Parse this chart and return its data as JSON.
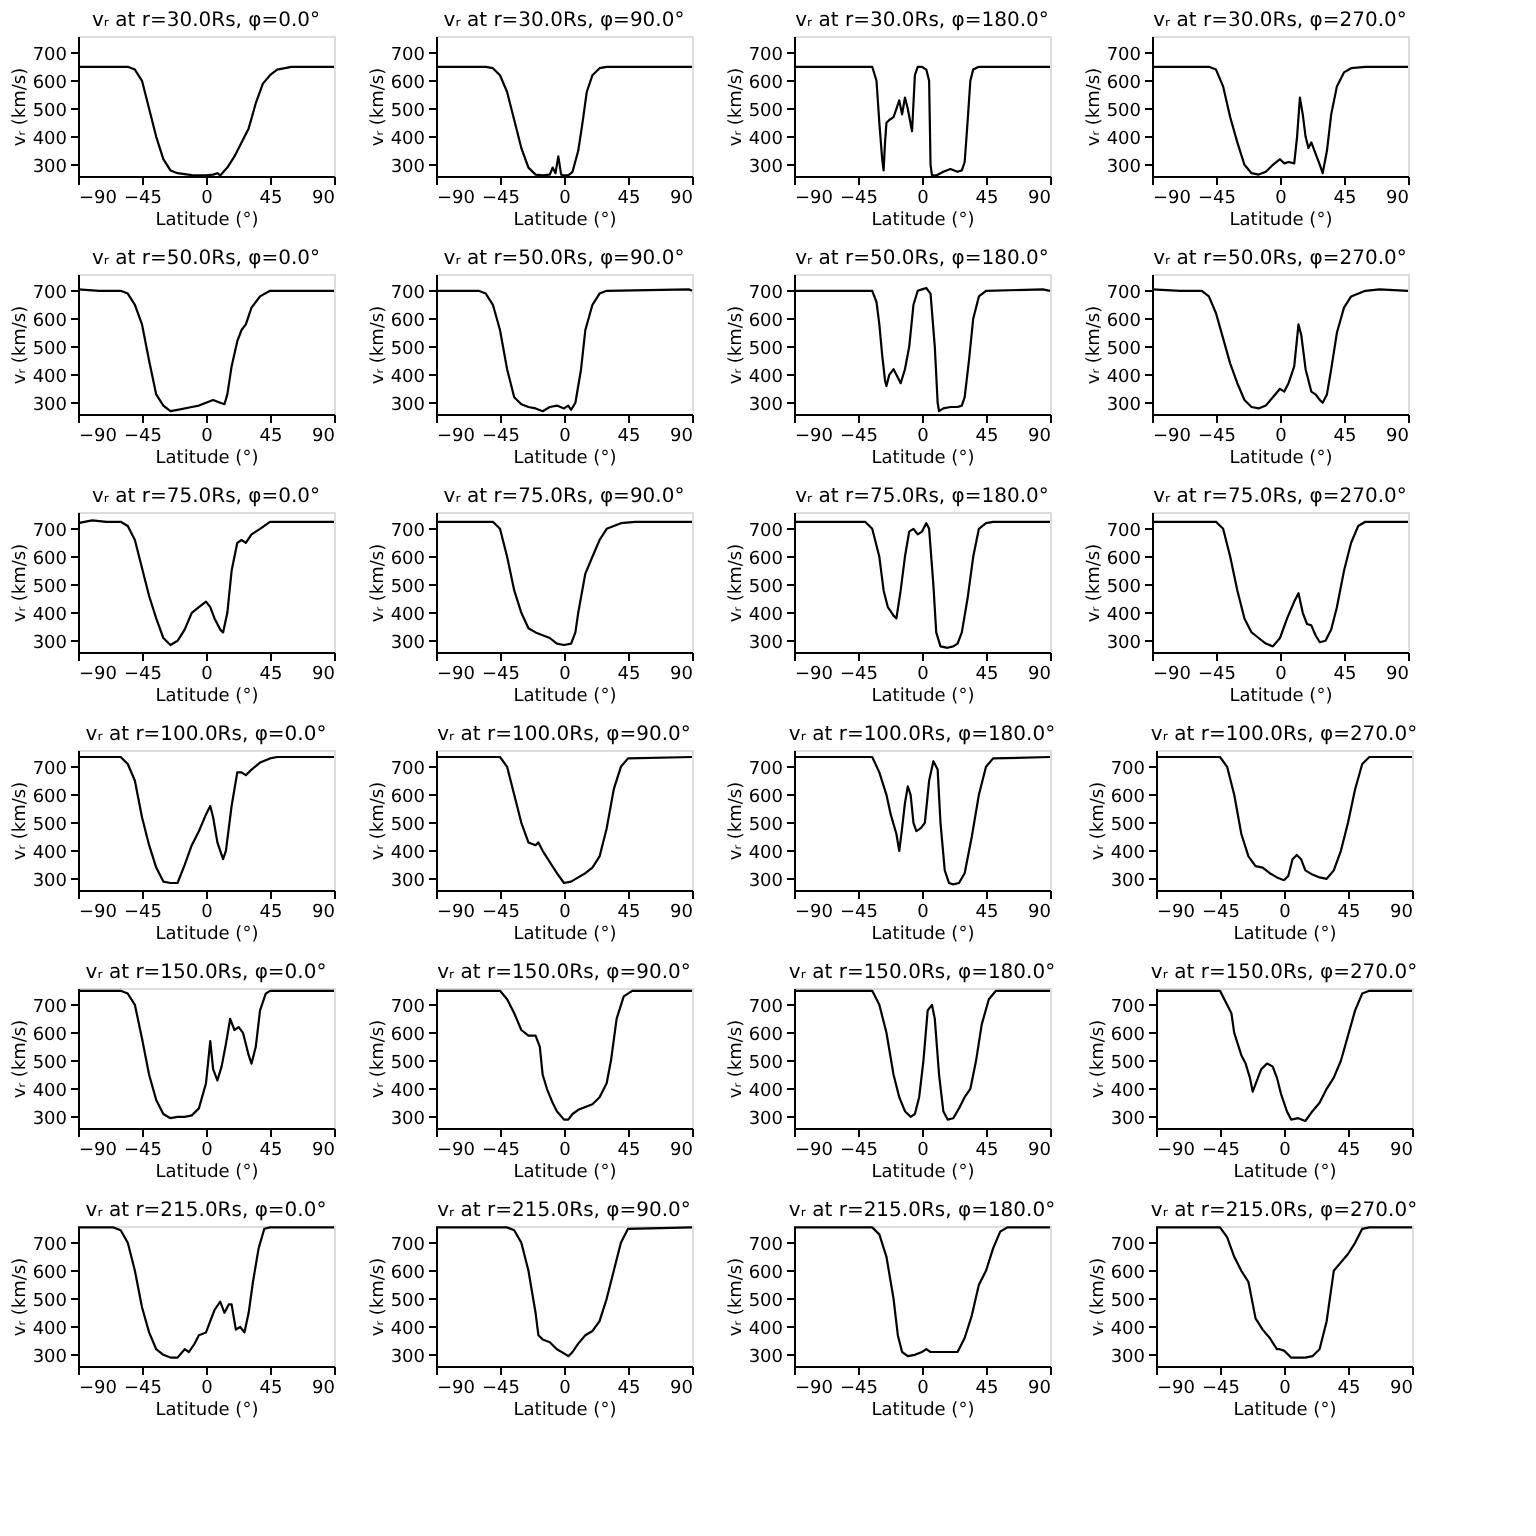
{
  "chart_data": [
    {
      "type": "line",
      "title": "vᵣ at r=30.0Rs, φ=0.0°",
      "xlabel": "Latitude (°)",
      "ylabel": "vᵣ (km/s)",
      "xlim": [
        -90,
        90
      ],
      "ylim": [
        260,
        760
      ],
      "xticks": [
        -90,
        -45,
        0,
        45,
        90
      ],
      "yticks": [
        300,
        400,
        500,
        600,
        700
      ],
      "series": [
        {
          "color": "#000000",
          "x": [
            -90,
            -55,
            -50,
            -45,
            -40,
            -35,
            -30,
            -25,
            -20,
            -10,
            -5,
            0,
            5,
            8,
            10,
            15,
            20,
            25,
            30,
            35,
            40,
            45,
            50,
            60,
            90
          ],
          "values": [
            650,
            650,
            640,
            600,
            500,
            400,
            320,
            280,
            270,
            263,
            262,
            262,
            265,
            270,
            262,
            290,
            330,
            380,
            430,
            520,
            590,
            620,
            640,
            650,
            650
          ]
        }
      ]
    },
    {
      "type": "line",
      "title": "vᵣ at r=30.0Rs, φ=90.0°",
      "xlabel": "Latitude (°)",
      "ylabel": "vᵣ (km/s)",
      "xlim": [
        -90,
        90
      ],
      "ylim": [
        260,
        760
      ],
      "xticks": [
        -90,
        -45,
        0,
        45,
        90
      ],
      "yticks": [
        300,
        400,
        500,
        600,
        700
      ],
      "series": [
        {
          "color": "#000000",
          "x": [
            -90,
            -55,
            -50,
            -45,
            -40,
            -35,
            -30,
            -25,
            -20,
            -15,
            -10,
            -8,
            -6,
            -4,
            -2,
            0,
            3,
            6,
            10,
            13,
            16,
            20,
            25,
            30,
            90
          ],
          "values": [
            650,
            650,
            645,
            620,
            560,
            460,
            360,
            290,
            265,
            262,
            265,
            290,
            270,
            330,
            265,
            262,
            262,
            275,
            350,
            450,
            560,
            620,
            645,
            650,
            650
          ]
        }
      ]
    },
    {
      "type": "line",
      "title": "vᵣ at r=30.0Rs, φ=180.0°",
      "xlabel": "Latitude (°)",
      "ylabel": "vᵣ (km/s)",
      "xlim": [
        -90,
        90
      ],
      "ylim": [
        260,
        760
      ],
      "xticks": [
        -90,
        -45,
        0,
        45,
        90
      ],
      "yticks": [
        300,
        400,
        500,
        600,
        700
      ],
      "series": [
        {
          "color": "#000000",
          "x": [
            -90,
            -35,
            -32,
            -30,
            -28,
            -27,
            -26,
            -25,
            -23,
            -20,
            -18,
            -16,
            -14,
            -12,
            -10,
            -7,
            -5,
            -3,
            0,
            3,
            5,
            6,
            7,
            10,
            15,
            20,
            25,
            28,
            30,
            32,
            34,
            36,
            40,
            90
          ],
          "values": [
            650,
            650,
            600,
            450,
            320,
            280,
            380,
            450,
            460,
            470,
            500,
            530,
            480,
            540,
            500,
            420,
            620,
            650,
            650,
            640,
            600,
            300,
            262,
            262,
            275,
            285,
            275,
            280,
            310,
            450,
            600,
            640,
            650,
            650
          ]
        }
      ]
    },
    {
      "type": "line",
      "title": "vᵣ at r=30.0Rs, φ=270.0°",
      "xlabel": "Latitude (°)",
      "ylabel": "vᵣ (km/s)",
      "xlim": [
        -90,
        90
      ],
      "ylim": [
        260,
        760
      ],
      "xticks": [
        -90,
        -45,
        0,
        45,
        90
      ],
      "yticks": [
        300,
        400,
        500,
        600,
        700
      ],
      "series": [
        {
          "color": "#000000",
          "x": [
            -90,
            -50,
            -45,
            -40,
            -35,
            -30,
            -25,
            -20,
            -15,
            -10,
            -5,
            0,
            3,
            6,
            10,
            12,
            14,
            16,
            18,
            20,
            22,
            25,
            28,
            30,
            33,
            36,
            40,
            45,
            50,
            60,
            90
          ],
          "values": [
            650,
            650,
            640,
            580,
            470,
            380,
            300,
            270,
            265,
            275,
            300,
            320,
            305,
            310,
            305,
            400,
            540,
            480,
            400,
            360,
            380,
            340,
            300,
            270,
            350,
            480,
            580,
            630,
            645,
            650,
            650
          ]
        }
      ]
    },
    {
      "type": "line",
      "title": "vᵣ at r=50.0Rs, φ=0.0°",
      "xlabel": "Latitude (°)",
      "ylabel": "vᵣ (km/s)",
      "xlim": [
        -90,
        90
      ],
      "ylim": [
        260,
        760
      ],
      "xticks": [
        -90,
        -45,
        0,
        45,
        90
      ],
      "yticks": [
        300,
        400,
        500,
        600,
        700
      ],
      "series": [
        {
          "color": "#000000",
          "x": [
            -90,
            -75,
            -60,
            -55,
            -50,
            -45,
            -40,
            -35,
            -30,
            -25,
            -20,
            -10,
            -5,
            0,
            5,
            10,
            13,
            15,
            18,
            22,
            25,
            28,
            32,
            38,
            45,
            90
          ],
          "values": [
            705,
            700,
            700,
            690,
            650,
            580,
            450,
            330,
            290,
            270,
            275,
            285,
            290,
            300,
            310,
            300,
            295,
            330,
            430,
            520,
            560,
            580,
            640,
            680,
            700,
            700
          ]
        }
      ]
    },
    {
      "type": "line",
      "title": "vᵣ at r=50.0Rs, φ=90.0°",
      "xlabel": "Latitude (°)",
      "ylabel": "vᵣ (km/s)",
      "xlim": [
        -90,
        90
      ],
      "ylim": [
        260,
        760
      ],
      "xticks": [
        -90,
        -45,
        0,
        45,
        90
      ],
      "yticks": [
        300,
        400,
        500,
        600,
        700
      ],
      "series": [
        {
          "color": "#000000",
          "x": [
            -90,
            -60,
            -55,
            -50,
            -45,
            -40,
            -35,
            -30,
            -25,
            -20,
            -15,
            -10,
            -5,
            0,
            3,
            5,
            8,
            12,
            15,
            20,
            25,
            30,
            88,
            90
          ],
          "values": [
            700,
            700,
            690,
            650,
            560,
            420,
            320,
            295,
            285,
            280,
            270,
            285,
            290,
            280,
            290,
            275,
            300,
            420,
            560,
            650,
            690,
            700,
            705,
            700
          ]
        }
      ]
    },
    {
      "type": "line",
      "title": "vᵣ at r=50.0Rs, φ=180.0°",
      "xlabel": "Latitude (°)",
      "ylabel": "vᵣ (km/s)",
      "xlim": [
        -90,
        90
      ],
      "ylim": [
        260,
        760
      ],
      "xticks": [
        -90,
        -45,
        0,
        45,
        90
      ],
      "yticks": [
        300,
        400,
        500,
        600,
        700
      ],
      "series": [
        {
          "color": "#000000",
          "x": [
            -90,
            -35,
            -32,
            -30,
            -28,
            -26,
            -25,
            -23,
            -20,
            -17,
            -15,
            -12,
            -9,
            -6,
            -3,
            0,
            3,
            6,
            9,
            11,
            12,
            15,
            20,
            25,
            28,
            30,
            33,
            36,
            40,
            45,
            85,
            90
          ],
          "values": [
            700,
            700,
            660,
            580,
            470,
            380,
            360,
            400,
            420,
            390,
            370,
            420,
            500,
            650,
            700,
            705,
            710,
            690,
            500,
            300,
            270,
            280,
            285,
            285,
            290,
            320,
            450,
            600,
            680,
            700,
            705,
            700
          ]
        }
      ]
    },
    {
      "type": "line",
      "title": "vᵣ at r=50.0Rs, φ=270.0°",
      "xlabel": "Latitude (°)",
      "ylabel": "vᵣ (km/s)",
      "xlim": [
        -90,
        90
      ],
      "ylim": [
        260,
        760
      ],
      "xticks": [
        -90,
        -45,
        0,
        45,
        90
      ],
      "yticks": [
        300,
        400,
        500,
        600,
        700
      ],
      "series": [
        {
          "color": "#000000",
          "x": [
            -90,
            -70,
            -55,
            -50,
            -45,
            -40,
            -35,
            -30,
            -25,
            -20,
            -15,
            -10,
            -5,
            0,
            3,
            6,
            10,
            13,
            15,
            18,
            22,
            25,
            28,
            30,
            33,
            36,
            40,
            45,
            50,
            60,
            70,
            90
          ],
          "values": [
            705,
            700,
            700,
            680,
            620,
            530,
            440,
            370,
            310,
            285,
            280,
            290,
            320,
            350,
            340,
            370,
            430,
            580,
            540,
            420,
            340,
            330,
            310,
            300,
            330,
            420,
            550,
            640,
            680,
            700,
            705,
            700
          ]
        }
      ]
    },
    {
      "type": "line",
      "title": "vᵣ at r=75.0Rs, φ=0.0°",
      "xlabel": "Latitude (°)",
      "ylabel": "vᵣ (km/s)",
      "xlim": [
        -90,
        90
      ],
      "ylim": [
        260,
        760
      ],
      "xticks": [
        -90,
        -45,
        0,
        45,
        90
      ],
      "yticks": [
        300,
        400,
        500,
        600,
        700
      ],
      "series": [
        {
          "color": "#000000",
          "x": [
            -90,
            -80,
            -70,
            -60,
            -55,
            -50,
            -45,
            -40,
            -35,
            -30,
            -25,
            -20,
            -15,
            -10,
            -5,
            0,
            3,
            6,
            10,
            12,
            15,
            18,
            22,
            25,
            28,
            32,
            38,
            45,
            90
          ],
          "values": [
            720,
            730,
            725,
            725,
            710,
            660,
            560,
            460,
            380,
            310,
            285,
            300,
            340,
            400,
            420,
            440,
            420,
            380,
            340,
            330,
            400,
            550,
            650,
            660,
            650,
            680,
            700,
            725,
            725
          ]
        }
      ]
    },
    {
      "type": "line",
      "title": "vᵣ at r=75.0Rs, φ=90.0°",
      "xlabel": "Latitude (°)",
      "ylabel": "vᵣ (km/s)",
      "xlim": [
        -90,
        90
      ],
      "ylim": [
        260,
        760
      ],
      "xticks": [
        -90,
        -45,
        0,
        45,
        90
      ],
      "yticks": [
        300,
        400,
        500,
        600,
        700
      ],
      "series": [
        {
          "color": "#000000",
          "x": [
            -90,
            -50,
            -45,
            -40,
            -35,
            -30,
            -25,
            -20,
            -15,
            -10,
            -5,
            0,
            5,
            8,
            10,
            15,
            20,
            25,
            30,
            40,
            50,
            90
          ],
          "values": [
            725,
            725,
            700,
            600,
            480,
            400,
            345,
            330,
            320,
            310,
            290,
            285,
            290,
            330,
            400,
            540,
            600,
            660,
            700,
            720,
            725,
            725
          ]
        }
      ]
    },
    {
      "type": "line",
      "title": "vᵣ at r=75.0Rs, φ=180.0°",
      "xlabel": "Latitude (°)",
      "ylabel": "vᵣ (km/s)",
      "xlim": [
        -90,
        90
      ],
      "ylim": [
        260,
        760
      ],
      "xticks": [
        -90,
        -45,
        0,
        45,
        90
      ],
      "yticks": [
        300,
        400,
        500,
        600,
        700
      ],
      "series": [
        {
          "color": "#000000",
          "x": [
            -90,
            -40,
            -35,
            -30,
            -27,
            -24,
            -20,
            -18,
            -15,
            -12,
            -9,
            -6,
            -3,
            0,
            3,
            5,
            8,
            10,
            13,
            18,
            22,
            25,
            28,
            32,
            36,
            40,
            45,
            50,
            90
          ],
          "values": [
            725,
            725,
            700,
            600,
            480,
            420,
            390,
            380,
            480,
            600,
            690,
            700,
            680,
            690,
            720,
            700,
            500,
            330,
            280,
            275,
            280,
            290,
            330,
            450,
            600,
            700,
            720,
            725,
            725
          ]
        }
      ]
    },
    {
      "type": "line",
      "title": "vᵣ at r=75.0Rs, φ=270.0°",
      "xlabel": "Latitude (°)",
      "ylabel": "vᵣ (km/s)",
      "xlim": [
        -90,
        90
      ],
      "ylim": [
        260,
        760
      ],
      "xticks": [
        -90,
        -45,
        0,
        45,
        90
      ],
      "yticks": [
        300,
        400,
        500,
        600,
        700
      ],
      "series": [
        {
          "color": "#000000",
          "x": [
            -90,
            -45,
            -40,
            -35,
            -30,
            -25,
            -20,
            -15,
            -10,
            -5,
            0,
            5,
            10,
            13,
            16,
            19,
            22,
            25,
            28,
            32,
            36,
            40,
            45,
            50,
            55,
            60,
            90
          ],
          "values": [
            725,
            725,
            700,
            600,
            480,
            380,
            330,
            310,
            290,
            280,
            310,
            380,
            440,
            470,
            400,
            360,
            355,
            320,
            295,
            300,
            340,
            420,
            550,
            650,
            710,
            725,
            725
          ]
        }
      ]
    },
    {
      "type": "line",
      "title": "vᵣ at r=100.0Rs, φ=0.0°",
      "xlabel": "Latitude (°)",
      "ylabel": "vᵣ (km/s)",
      "xlim": [
        -90,
        90
      ],
      "ylim": [
        260,
        760
      ],
      "xticks": [
        -90,
        -45,
        0,
        45,
        90
      ],
      "yticks": [
        300,
        400,
        500,
        600,
        700
      ],
      "series": [
        {
          "color": "#000000",
          "x": [
            -90,
            -60,
            -55,
            -50,
            -45,
            -40,
            -35,
            -30,
            -25,
            -20,
            -15,
            -10,
            -5,
            0,
            3,
            5,
            8,
            12,
            14,
            18,
            22,
            25,
            28,
            32,
            38,
            45,
            50,
            90
          ],
          "values": [
            735,
            735,
            710,
            650,
            520,
            420,
            340,
            290,
            285,
            285,
            350,
            420,
            470,
            530,
            560,
            520,
            430,
            370,
            400,
            560,
            680,
            680,
            670,
            690,
            715,
            730,
            735,
            735
          ]
        }
      ]
    },
    {
      "type": "line",
      "title": "vᵣ at r=100.0Rs, φ=90.0°",
      "xlabel": "Latitude (°)",
      "ylabel": "vᵣ (km/s)",
      "xlim": [
        -90,
        90
      ],
      "ylim": [
        260,
        760
      ],
      "xticks": [
        -90,
        -45,
        0,
        45,
        90
      ],
      "yticks": [
        300,
        400,
        500,
        600,
        700
      ],
      "series": [
        {
          "color": "#000000",
          "x": [
            -90,
            -45,
            -40,
            -35,
            -30,
            -25,
            -20,
            -18,
            -15,
            -10,
            -5,
            0,
            5,
            10,
            15,
            20,
            25,
            30,
            35,
            40,
            45,
            90
          ],
          "values": [
            735,
            735,
            700,
            600,
            500,
            430,
            420,
            430,
            400,
            360,
            320,
            285,
            290,
            305,
            320,
            340,
            380,
            480,
            620,
            700,
            730,
            735
          ]
        }
      ]
    },
    {
      "type": "line",
      "title": "vᵣ at r=100.0Rs, φ=180.0°",
      "xlabel": "Latitude (°)",
      "ylabel": "vᵣ (km/s)",
      "xlim": [
        -90,
        90
      ],
      "ylim": [
        260,
        760
      ],
      "xticks": [
        -90,
        -45,
        0,
        45,
        90
      ],
      "yticks": [
        300,
        400,
        500,
        600,
        700
      ],
      "series": [
        {
          "color": "#000000",
          "x": [
            -90,
            -35,
            -30,
            -25,
            -22,
            -18,
            -16,
            -14,
            -12,
            -10,
            -8,
            -6,
            -4,
            -1,
            2,
            5,
            8,
            11,
            13,
            16,
            19,
            22,
            26,
            30,
            35,
            40,
            45,
            50,
            90
          ],
          "values": [
            735,
            735,
            680,
            600,
            530,
            460,
            400,
            480,
            570,
            630,
            600,
            500,
            470,
            480,
            500,
            650,
            720,
            690,
            500,
            330,
            285,
            280,
            285,
            320,
            450,
            600,
            700,
            730,
            735
          ]
        }
      ]
    },
    {
      "type": "line",
      "title": "vᵣ at r=100.0Rs, φ=270.0°",
      "xlabel": "Latitude (°)",
      "ylabel": "vᵣ (km/s)",
      "xlim": [
        -90,
        90
      ],
      "ylim": [
        260,
        760
      ],
      "xticks": [
        -90,
        -45,
        0,
        45,
        90
      ],
      "yticks": [
        300,
        400,
        500,
        600,
        700
      ],
      "series": [
        {
          "color": "#000000",
          "x": [
            -90,
            -45,
            -40,
            -35,
            -30,
            -25,
            -20,
            -15,
            -10,
            -5,
            0,
            3,
            6,
            9,
            12,
            15,
            20,
            25,
            30,
            35,
            40,
            45,
            50,
            55,
            60,
            90
          ],
          "values": [
            735,
            735,
            700,
            600,
            460,
            380,
            345,
            340,
            320,
            305,
            295,
            310,
            370,
            385,
            370,
            330,
            315,
            305,
            300,
            330,
            400,
            500,
            620,
            710,
            735,
            735
          ]
        }
      ]
    },
    {
      "type": "line",
      "title": "vᵣ at r=150.0Rs, φ=0.0°",
      "xlabel": "Latitude (°)",
      "ylabel": "vᵣ (km/s)",
      "xlim": [
        -90,
        90
      ],
      "ylim": [
        260,
        760
      ],
      "xticks": [
        -90,
        -45,
        0,
        45,
        90
      ],
      "yticks": [
        300,
        400,
        500,
        600,
        700
      ],
      "series": [
        {
          "color": "#000000",
          "x": [
            -90,
            -60,
            -55,
            -50,
            -45,
            -40,
            -35,
            -30,
            -25,
            -20,
            -15,
            -10,
            -5,
            0,
            3,
            5,
            8,
            11,
            14,
            17,
            20,
            23,
            26,
            30,
            32,
            35,
            38,
            42,
            45,
            90
          ],
          "values": [
            750,
            750,
            740,
            700,
            580,
            450,
            360,
            310,
            295,
            300,
            300,
            305,
            330,
            420,
            570,
            470,
            430,
            480,
            560,
            650,
            610,
            620,
            600,
            520,
            490,
            550,
            680,
            740,
            750,
            750
          ]
        }
      ]
    },
    {
      "type": "line",
      "title": "vᵣ at r=150.0Rs, φ=90.0°",
      "xlabel": "Latitude (°)",
      "ylabel": "vᵣ (km/s)",
      "xlim": [
        -90,
        90
      ],
      "ylim": [
        260,
        760
      ],
      "xticks": [
        -90,
        -45,
        0,
        45,
        90
      ],
      "yticks": [
        300,
        400,
        500,
        600,
        700
      ],
      "series": [
        {
          "color": "#000000",
          "x": [
            -90,
            -45,
            -40,
            -35,
            -30,
            -25,
            -20,
            -17,
            -15,
            -12,
            -8,
            -5,
            0,
            3,
            6,
            10,
            15,
            20,
            25,
            30,
            33,
            37,
            42,
            48,
            90
          ],
          "values": [
            750,
            750,
            720,
            670,
            610,
            590,
            590,
            550,
            450,
            400,
            350,
            320,
            290,
            290,
            310,
            325,
            335,
            345,
            370,
            420,
            500,
            650,
            730,
            750,
            750
          ]
        }
      ]
    },
    {
      "type": "line",
      "title": "vᵣ at r=150.0Rs, φ=180.0°",
      "xlabel": "Latitude (°)",
      "ylabel": "vᵣ (km/s)",
      "xlim": [
        -90,
        90
      ],
      "ylim": [
        260,
        760
      ],
      "xticks": [
        -90,
        -45,
        0,
        45,
        90
      ],
      "yticks": [
        300,
        400,
        500,
        600,
        700
      ],
      "series": [
        {
          "color": "#000000",
          "x": [
            -90,
            -35,
            -30,
            -25,
            -20,
            -16,
            -12,
            -8,
            -5,
            -2,
            1,
            4,
            7,
            9,
            12,
            15,
            18,
            22,
            26,
            30,
            34,
            38,
            42,
            47,
            52,
            90
          ],
          "values": [
            750,
            750,
            700,
            600,
            450,
            370,
            320,
            300,
            310,
            370,
            500,
            680,
            700,
            650,
            450,
            320,
            290,
            295,
            330,
            370,
            400,
            500,
            630,
            720,
            750,
            750
          ]
        }
      ]
    },
    {
      "type": "line",
      "title": "vᵣ at r=150.0Rs, φ=270.0°",
      "xlabel": "Latitude (°)",
      "ylabel": "vᵣ (km/s)",
      "xlim": [
        -90,
        90
      ],
      "ylim": [
        260,
        760
      ],
      "xticks": [
        -90,
        -45,
        0,
        45,
        90
      ],
      "yticks": [
        300,
        400,
        500,
        600,
        700
      ],
      "series": [
        {
          "color": "#000000",
          "x": [
            -90,
            -45,
            -40,
            -37,
            -35,
            -30,
            -27,
            -24,
            -22,
            -19,
            -16,
            -12,
            -8,
            -5,
            -2,
            2,
            5,
            10,
            15,
            20,
            25,
            30,
            35,
            40,
            45,
            50,
            55,
            60,
            90
          ],
          "values": [
            750,
            750,
            700,
            670,
            600,
            520,
            490,
            440,
            390,
            430,
            470,
            490,
            480,
            440,
            380,
            320,
            290,
            295,
            285,
            320,
            350,
            400,
            440,
            500,
            590,
            680,
            740,
            750,
            750
          ]
        }
      ]
    },
    {
      "type": "line",
      "title": "vᵣ at r=215.0Rs, φ=0.0°",
      "xlabel": "Latitude (°)",
      "ylabel": "vᵣ (km/s)",
      "xlim": [
        -90,
        90
      ],
      "ylim": [
        260,
        760
      ],
      "xticks": [
        -90,
        -45,
        0,
        45,
        90
      ],
      "yticks": [
        300,
        400,
        500,
        600,
        700
      ],
      "series": [
        {
          "color": "#000000",
          "x": [
            -90,
            -65,
            -60,
            -55,
            -50,
            -45,
            -40,
            -35,
            -30,
            -25,
            -20,
            -15,
            -12,
            -8,
            -5,
            0,
            3,
            6,
            10,
            13,
            16,
            18,
            21,
            24,
            27,
            30,
            33,
            37,
            41,
            45,
            90
          ],
          "values": [
            755,
            755,
            745,
            700,
            600,
            470,
            380,
            320,
            300,
            290,
            290,
            320,
            310,
            340,
            370,
            380,
            420,
            460,
            490,
            450,
            480,
            480,
            390,
            400,
            380,
            450,
            560,
            680,
            750,
            755,
            755
          ]
        }
      ]
    },
    {
      "type": "line",
      "title": "vᵣ at r=215.0Rs, φ=90.0°",
      "xlabel": "Latitude (°)",
      "ylabel": "vᵣ (km/s)",
      "xlim": [
        -90,
        90
      ],
      "ylim": [
        260,
        760
      ],
      "xticks": [
        -90,
        -45,
        0,
        45,
        90
      ],
      "yticks": [
        300,
        400,
        500,
        600,
        700
      ],
      "series": [
        {
          "color": "#000000",
          "x": [
            -90,
            -40,
            -35,
            -30,
            -25,
            -20,
            -18,
            -15,
            -10,
            -5,
            0,
            3,
            6,
            10,
            15,
            20,
            25,
            30,
            35,
            40,
            45,
            90
          ],
          "values": [
            755,
            755,
            745,
            700,
            600,
            450,
            370,
            355,
            345,
            320,
            305,
            295,
            310,
            340,
            370,
            385,
            420,
            500,
            600,
            700,
            750,
            755
          ]
        }
      ]
    },
    {
      "type": "line",
      "title": "vᵣ at r=215.0Rs, φ=180.0°",
      "xlabel": "Latitude (°)",
      "ylabel": "vᵣ (km/s)",
      "xlim": [
        -90,
        90
      ],
      "ylim": [
        260,
        760
      ],
      "xticks": [
        -90,
        -45,
        0,
        45,
        90
      ],
      "yticks": [
        300,
        400,
        500,
        600,
        700
      ],
      "series": [
        {
          "color": "#000000",
          "x": [
            -90,
            -35,
            -30,
            -25,
            -20,
            -17,
            -14,
            -10,
            -5,
            0,
            3,
            6,
            10,
            15,
            20,
            25,
            30,
            35,
            40,
            45,
            50,
            55,
            60,
            90
          ],
          "values": [
            755,
            755,
            730,
            650,
            500,
            370,
            310,
            295,
            300,
            310,
            320,
            310,
            310,
            310,
            310,
            310,
            360,
            440,
            550,
            600,
            680,
            740,
            755,
            755
          ]
        }
      ]
    },
    {
      "type": "line",
      "title": "vᵣ at r=215.0Rs, φ=270.0°",
      "xlabel": "Latitude (°)",
      "ylabel": "vᵣ (km/s)",
      "xlim": [
        -90,
        90
      ],
      "ylim": [
        260,
        760
      ],
      "xticks": [
        -90,
        -45,
        0,
        45,
        90
      ],
      "yticks": [
        300,
        400,
        500,
        600,
        700
      ],
      "series": [
        {
          "color": "#000000",
          "x": [
            -90,
            -45,
            -40,
            -35,
            -30,
            -25,
            -20,
            -15,
            -10,
            -5,
            -3,
            0,
            3,
            5,
            10,
            15,
            20,
            25,
            30,
            35,
            40,
            45,
            50,
            55,
            60,
            90
          ],
          "values": [
            755,
            755,
            720,
            650,
            600,
            560,
            430,
            390,
            360,
            320,
            320,
            315,
            300,
            290,
            290,
            290,
            295,
            320,
            420,
            600,
            630,
            660,
            700,
            750,
            755,
            755
          ]
        }
      ]
    }
  ]
}
